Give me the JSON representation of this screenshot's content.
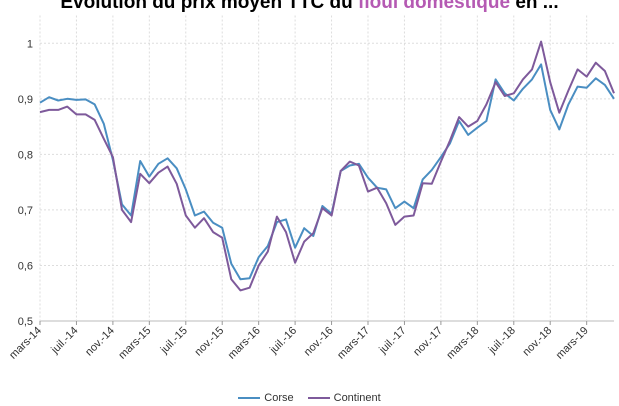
{
  "title": {
    "prefix": "Évolution du prix moyen TTC du ",
    "highlight": "fioul domestique",
    "suffix": " en ..."
  },
  "colors": {
    "corse": "#4a8ec2",
    "continent": "#7e5a9b",
    "highlight": "#b55ab3"
  },
  "legend": [
    {
      "name": "Corse",
      "color": "#4a8ec2"
    },
    {
      "name": "Continent",
      "color": "#7e5a9b"
    }
  ],
  "chart_data": {
    "type": "line",
    "title": "Évolution du prix moyen TTC du fioul domestique en ...",
    "ylim": [
      0.5,
      1.05
    ],
    "yticks": [
      0.5,
      0.6,
      0.7,
      0.8,
      0.9,
      1
    ],
    "ytick_labels": [
      "0,5",
      "0,6",
      "0,7",
      "0,8",
      "0,9",
      "1"
    ],
    "grid": true,
    "legend_position": "bottom",
    "xtick_labels": [
      "mars-14",
      "juil.-14",
      "nov.-14",
      "mars-15",
      "juil.-15",
      "nov.-15",
      "mars-16",
      "juil.-16",
      "nov.-16",
      "mars-17",
      "juil.-17",
      "nov.-17",
      "mars-18",
      "juil.-18",
      "nov.-18",
      "mars-19"
    ],
    "x": [
      "mars-14",
      "avr.-14",
      "mai-14",
      "juin-14",
      "juil.-14",
      "août-14",
      "sept.-14",
      "oct.-14",
      "nov.-14",
      "déc.-14",
      "janv.-15",
      "févr.-15",
      "mars-15",
      "avr.-15",
      "mai-15",
      "juin-15",
      "juil.-15",
      "août-15",
      "sept.-15",
      "oct.-15",
      "nov.-15",
      "déc.-15",
      "janv.-16",
      "févr.-16",
      "mars-16",
      "avr.-16",
      "mai-16",
      "juin-16",
      "juil.-16",
      "août-16",
      "sept.-16",
      "oct.-16",
      "nov.-16",
      "déc.-16",
      "janv.-17",
      "févr.-17",
      "mars-17",
      "avr.-17",
      "mai-17",
      "juin-17",
      "juil.-17",
      "août-17",
      "sept.-17",
      "oct.-17",
      "nov.-17",
      "déc.-17",
      "janv.-18",
      "févr.-18",
      "mars-18",
      "avr.-18",
      "mai-18",
      "juin-18",
      "juil.-18",
      "août-18",
      "sept.-18",
      "oct.-18",
      "nov.-18",
      "déc.-18",
      "janv.-19",
      "févr.-19",
      "mars-19",
      "avr.-19",
      "mai-19",
      "juin-19"
    ],
    "series": [
      {
        "name": "Corse",
        "color": "#4a8ec2",
        "values": [
          0.893,
          0.903,
          0.897,
          0.9,
          0.898,
          0.899,
          0.89,
          0.855,
          0.79,
          0.71,
          0.69,
          0.788,
          0.76,
          0.783,
          0.793,
          0.775,
          0.737,
          0.69,
          0.697,
          0.677,
          0.668,
          0.603,
          0.575,
          0.577,
          0.615,
          0.635,
          0.678,
          0.683,
          0.632,
          0.667,
          0.653,
          0.707,
          0.693,
          0.77,
          0.78,
          0.783,
          0.758,
          0.74,
          0.737,
          0.703,
          0.715,
          0.703,
          0.755,
          0.772,
          0.795,
          0.82,
          0.86,
          0.835,
          0.848,
          0.86,
          0.935,
          0.91,
          0.897,
          0.918,
          0.935,
          0.962,
          0.88,
          0.845,
          0.89,
          0.922,
          0.92,
          0.937,
          0.925,
          0.9
        ]
      },
      {
        "name": "Continent",
        "color": "#7e5a9b",
        "values": [
          0.876,
          0.88,
          0.88,
          0.886,
          0.872,
          0.872,
          0.862,
          0.828,
          0.795,
          0.7,
          0.678,
          0.765,
          0.748,
          0.767,
          0.778,
          0.747,
          0.69,
          0.668,
          0.685,
          0.66,
          0.65,
          0.575,
          0.555,
          0.56,
          0.6,
          0.625,
          0.688,
          0.66,
          0.605,
          0.643,
          0.658,
          0.703,
          0.69,
          0.77,
          0.787,
          0.78,
          0.733,
          0.74,
          0.712,
          0.673,
          0.688,
          0.69,
          0.748,
          0.747,
          0.787,
          0.825,
          0.867,
          0.85,
          0.86,
          0.89,
          0.93,
          0.905,
          0.91,
          0.935,
          0.953,
          1.003,
          0.93,
          0.875,
          0.915,
          0.953,
          0.94,
          0.965,
          0.95,
          0.91
        ]
      }
    ]
  }
}
